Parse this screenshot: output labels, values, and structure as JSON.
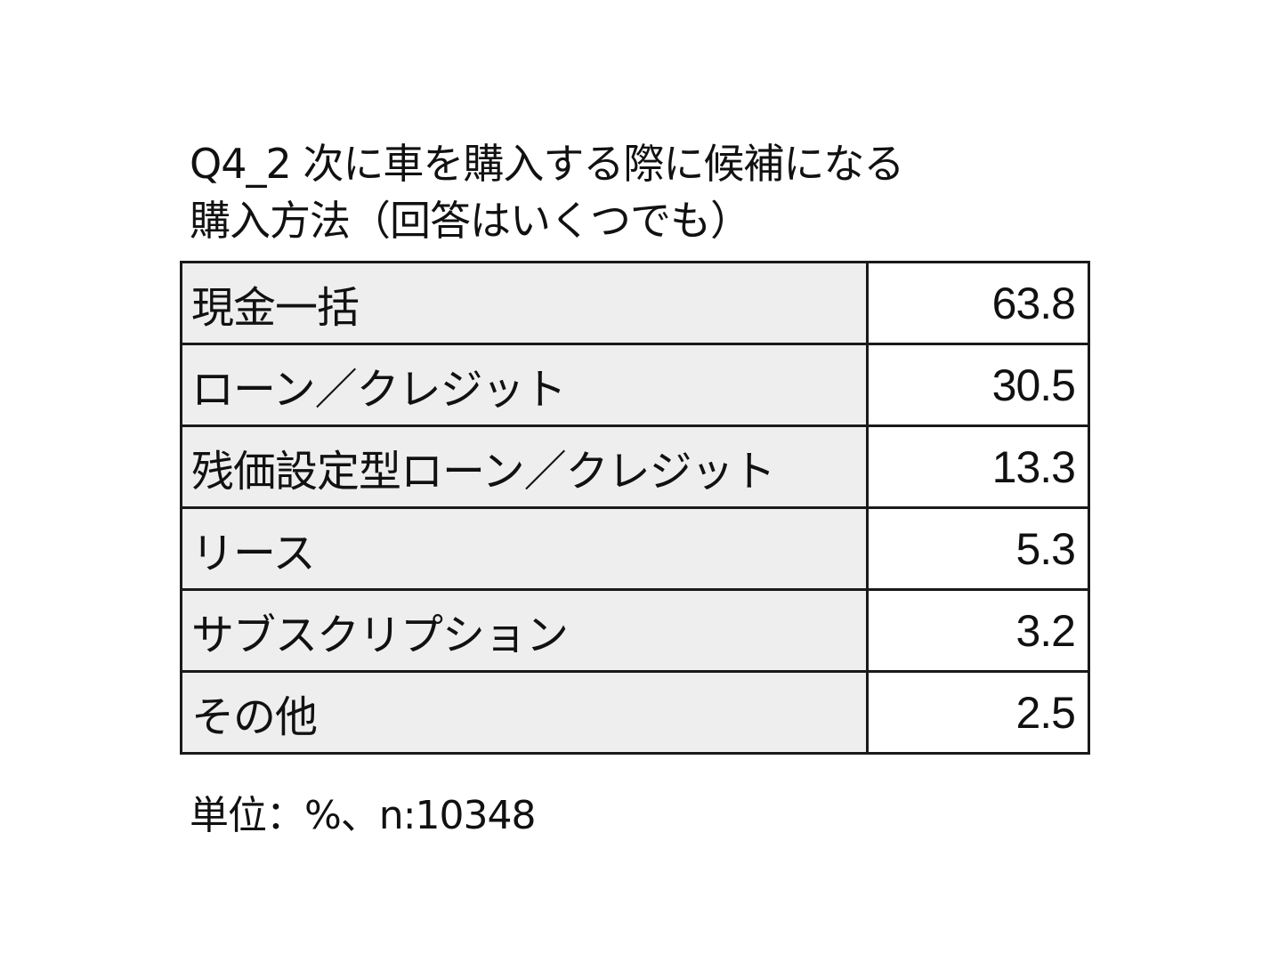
{
  "chart_data": {
    "type": "table",
    "title": "Q4_2 次に車を購入する際に候補になる購入方法（回答はいくつでも）",
    "title_lines": [
      "Q4_2 次に車を購入する際に候補になる",
      "購入方法（回答はいくつでも）"
    ],
    "categories": [
      "現金一括",
      "ローン／クレジット",
      "残価設定型ローン／クレジット",
      "リース",
      "サブスクリプション",
      "その他"
    ],
    "values": [
      "63.8",
      "30.5",
      "13.3",
      "5.3",
      "3.2",
      "2.5"
    ],
    "footnote": "単位：%、n:10348",
    "colors": {
      "label_cell": "#eeeeee",
      "value_cell": "#ffffff",
      "border": "#1a1a1a"
    }
  }
}
